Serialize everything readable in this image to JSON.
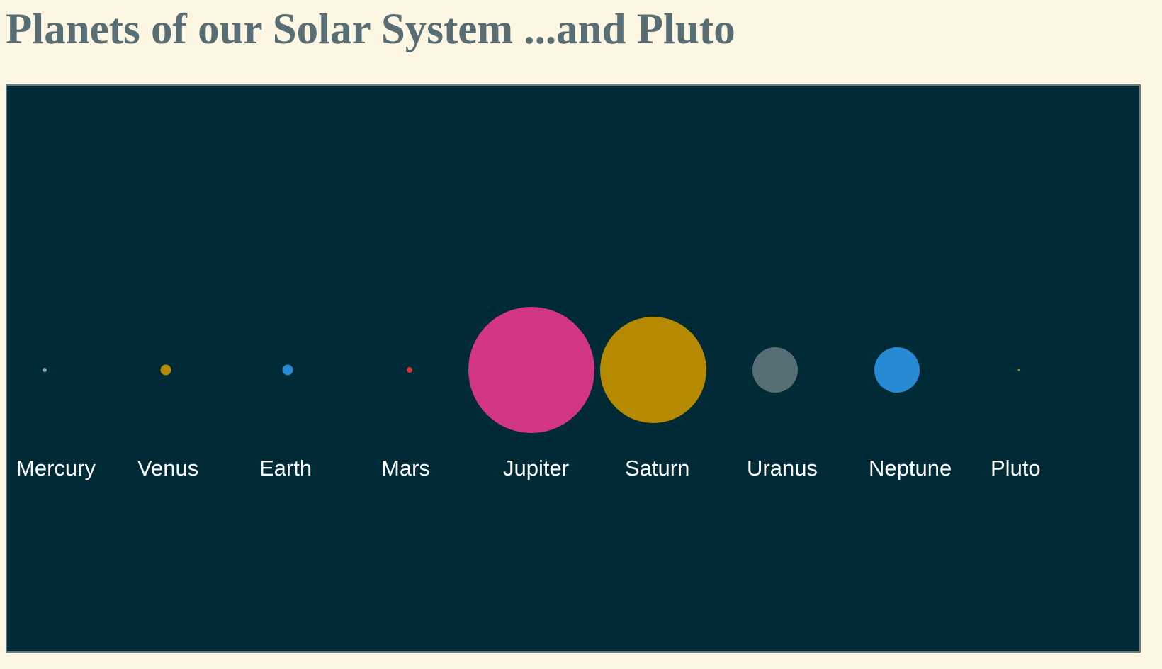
{
  "page": {
    "title": "Planets of our Solar System ...and Pluto"
  },
  "colors": {
    "background": "#fdf6e3",
    "panel": "#002b36",
    "title": "#586e75",
    "label": "#ffffff"
  },
  "planets": [
    {
      "name": "Mercury",
      "color": "#93a1a1"
    },
    {
      "name": "Venus",
      "color": "#b58900"
    },
    {
      "name": "Earth",
      "color": "#268bd2"
    },
    {
      "name": "Mars",
      "color": "#dc322f"
    },
    {
      "name": "Jupiter",
      "color": "#d33682"
    },
    {
      "name": "Saturn",
      "color": "#b58900"
    },
    {
      "name": "Uranus",
      "color": "#586e75"
    },
    {
      "name": "Neptune",
      "color": "#268bd2"
    },
    {
      "name": "Pluto",
      "color": "#b58900"
    }
  ]
}
